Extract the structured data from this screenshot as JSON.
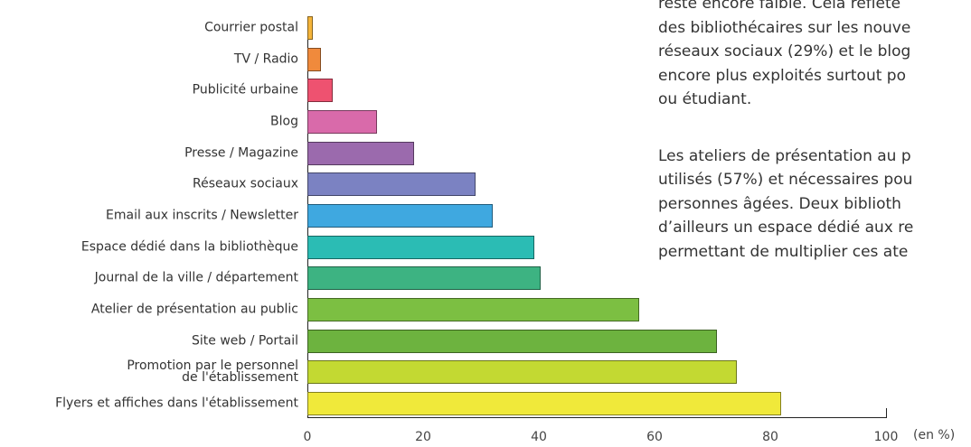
{
  "chart_data": {
    "type": "bar",
    "orientation": "horizontal",
    "categories": [
      "Courrier postal",
      "TV / Radio",
      "Publicité urbaine",
      "Blog",
      "Presse / Magazine",
      "Réseaux sociaux",
      "Email aux inscrits / Newsletter",
      "Espace dédié dans la bibliothèque",
      "Journal de la ville / département",
      "Atelier de présentation au public",
      "Site web / Portail",
      "Promotion par le personnel\nde l'établissement",
      "Flyers et affiches dans l'établissement"
    ],
    "values": [
      1,
      2.3,
      4.4,
      12,
      18.4,
      29,
      32,
      39.2,
      40.3,
      57.3,
      70.8,
      74.2,
      81.9
    ],
    "colors": [
      "#f4b43a",
      "#f08a3c",
      "#ee5270",
      "#d96aaa",
      "#9b6aad",
      "#7b82c2",
      "#3fa8e0",
      "#2bbcb4",
      "#3db382",
      "#7cbf42",
      "#6db33f",
      "#c3d932",
      "#f0e93a"
    ],
    "xlim": [
      0,
      100
    ],
    "xticks": [
      0,
      20,
      40,
      60,
      80,
      100
    ],
    "x_label": "(en %)"
  },
  "text": {
    "lines_1": [
      "reste encore faible. Cela reflète",
      "des bibliothécaires sur les nouve",
      "réseaux sociaux (29%) et le blog",
      "encore plus exploités surtout po",
      "ou étudiant."
    ],
    "lines_2": [
      "Les ateliers de présentation au p",
      "utilisés (57%) et nécessaires pou",
      "personnes âgées. Deux biblioth",
      "d’ailleurs un espace dédié aux re",
      "permettant de multiplier ces ate"
    ]
  }
}
